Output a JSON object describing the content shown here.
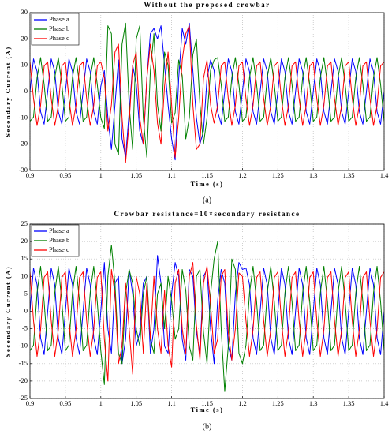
{
  "chart_data": [
    {
      "type": "line",
      "title": "Without the proposed crowbar",
      "xlabel": "Time (s)",
      "ylabel": "Secondary Current (A)",
      "caption": "(a)",
      "x": [
        0.9,
        0.905,
        0.91,
        0.915,
        0.92,
        0.925,
        0.93,
        0.935,
        0.94,
        0.945,
        0.95,
        0.955,
        0.96,
        0.965,
        0.97,
        0.975,
        0.98,
        0.985,
        0.99,
        0.995,
        1.0,
        1.005,
        1.01,
        1.015,
        1.02,
        1.025,
        1.03,
        1.035,
        1.04,
        1.045,
        1.05,
        1.055,
        1.06,
        1.065,
        1.07,
        1.075,
        1.08,
        1.085,
        1.09,
        1.095,
        1.1,
        1.105,
        1.11,
        1.115,
        1.12,
        1.125,
        1.13,
        1.135,
        1.14,
        1.145,
        1.15,
        1.155,
        1.16,
        1.165,
        1.17,
        1.175,
        1.18,
        1.185,
        1.19,
        1.195,
        1.2,
        1.205,
        1.21,
        1.215,
        1.22,
        1.225,
        1.23,
        1.235,
        1.24,
        1.245,
        1.25,
        1.255,
        1.26,
        1.265,
        1.27,
        1.275,
        1.28,
        1.285,
        1.29,
        1.295,
        1.3,
        1.305,
        1.31,
        1.315,
        1.32,
        1.325,
        1.33,
        1.335,
        1.34,
        1.345,
        1.35,
        1.355,
        1.36,
        1.365,
        1.37,
        1.375,
        1.38,
        1.385,
        1.39,
        1.395,
        1.4
      ],
      "series": [
        {
          "name": "Phase a",
          "color": "#0000ff",
          "values": [
            0,
            12.4,
            7.6,
            -7.6,
            -12.4,
            0,
            12.4,
            7.6,
            -7.6,
            -12.4,
            0,
            12.4,
            7.6,
            -7.6,
            -12.4,
            0,
            12.4,
            7.6,
            -7.6,
            -12.4,
            2,
            8,
            -10,
            -22,
            -5,
            12,
            -18,
            -25,
            -8,
            10,
            3,
            -15,
            -20,
            5,
            22,
            24,
            20,
            25,
            10,
            -5,
            -18,
            -26,
            5,
            24,
            18,
            26,
            8,
            -10,
            -20,
            -15,
            5,
            12,
            8,
            -7.6,
            -12.4,
            0,
            12.4,
            7.6,
            -7.6,
            -12.4,
            0,
            12.4,
            7.6,
            -7.6,
            -12.4,
            0,
            12.4,
            7.6,
            -7.6,
            -12.4,
            0,
            12.4,
            7.6,
            -7.6,
            -12.4,
            0,
            12.4,
            7.6,
            -7.6,
            -12.4,
            0,
            12.4,
            7.6,
            -7.6,
            -12.4,
            0,
            12.4,
            7.6,
            -7.6,
            -12.4,
            0,
            12.4,
            7.6,
            -7.6,
            -12.4,
            0,
            12.4,
            7.6,
            -7.6,
            -12.4,
            0
          ]
        },
        {
          "name": "Phase b",
          "color": "#008000",
          "values": [
            -11.3,
            -9.7,
            5.3,
            12.9,
            2.7,
            -11.3,
            -9.7,
            5.3,
            12.9,
            2.7,
            -11.3,
            -9.7,
            5.3,
            12.9,
            2.7,
            -11.3,
            -9.7,
            5.3,
            12.9,
            2.7,
            -10,
            -14,
            25,
            22,
            -20,
            -24,
            18,
            26,
            -5,
            -22,
            20,
            25,
            -10,
            -25,
            8,
            22,
            -5,
            -15,
            15,
            10,
            -12,
            -8,
            12,
            6,
            -18,
            -10,
            14,
            20,
            -5,
            -20,
            -10,
            8,
            12,
            12.9,
            2.7,
            -11.3,
            -9.7,
            5.3,
            12.9,
            2.7,
            -11.3,
            -9.7,
            5.3,
            12.9,
            2.7,
            -11.3,
            -9.7,
            5.3,
            12.9,
            2.7,
            -11.3,
            -9.7,
            5.3,
            12.9,
            2.7,
            -11.3,
            -9.7,
            5.3,
            12.9,
            2.7,
            -11.3,
            -9.7,
            5.3,
            12.9,
            2.7,
            -11.3,
            -9.7,
            5.3,
            12.9,
            2.7,
            -11.3,
            -9.7,
            5.3,
            12.9,
            2.7,
            -11.3,
            -9.7,
            5.3,
            12.9,
            2.7,
            -11.3
          ]
        },
        {
          "name": "Phase c",
          "color": "#ff0000",
          "values": [
            11.3,
            -2.7,
            -12.9,
            -5.3,
            9.7,
            11.3,
            -2.7,
            -12.9,
            -5.3,
            9.7,
            11.3,
            -2.7,
            -12.9,
            -5.3,
            9.7,
            11.3,
            -2.7,
            -12.9,
            -5.3,
            9.7,
            11.3,
            5,
            -15,
            -5,
            15,
            18,
            -10,
            -27,
            -12,
            10,
            15,
            -10,
            -20,
            5,
            18,
            8,
            -12,
            -20,
            2,
            15,
            -5,
            -25,
            -10,
            12,
            22,
            25,
            -5,
            -22,
            -20,
            5,
            12,
            -5,
            -12,
            -5.3,
            9.7,
            11.3,
            -2.7,
            -12.9,
            -5.3,
            9.7,
            11.3,
            -2.7,
            -12.9,
            -5.3,
            9.7,
            11.3,
            -2.7,
            -12.9,
            -5.3,
            9.7,
            11.3,
            -2.7,
            -12.9,
            -5.3,
            9.7,
            11.3,
            -2.7,
            -12.9,
            -5.3,
            9.7,
            11.3,
            -2.7,
            -12.9,
            -5.3,
            9.7,
            11.3,
            -2.7,
            -12.9,
            -5.3,
            9.7,
            11.3,
            -2.7,
            -12.9,
            -5.3,
            9.7,
            11.3,
            -2.7,
            -12.9,
            -5.3,
            9.7,
            11.3
          ]
        }
      ],
      "xlim": [
        0.9,
        1.4
      ],
      "ylim": [
        -30,
        30
      ],
      "xticks": [
        0.9,
        0.95,
        1,
        1.05,
        1.1,
        1.15,
        1.2,
        1.25,
        1.3,
        1.35,
        1.4
      ],
      "yticks": [
        -30,
        -20,
        -10,
        0,
        10,
        20,
        30
      ],
      "grid": true,
      "legend": "upper left"
    },
    {
      "type": "line",
      "title": "Crowbar resistance=10×secondary resistance",
      "xlabel": "Time (s)",
      "ylabel": "Secondary Current (A)",
      "caption": "(b)",
      "x": [
        0.9,
        0.905,
        0.91,
        0.915,
        0.92,
        0.925,
        0.93,
        0.935,
        0.94,
        0.945,
        0.95,
        0.955,
        0.96,
        0.965,
        0.97,
        0.975,
        0.98,
        0.985,
        0.99,
        0.995,
        1.0,
        1.005,
        1.01,
        1.015,
        1.02,
        1.025,
        1.03,
        1.035,
        1.04,
        1.045,
        1.05,
        1.055,
        1.06,
        1.065,
        1.07,
        1.075,
        1.08,
        1.085,
        1.09,
        1.095,
        1.1,
        1.105,
        1.11,
        1.115,
        1.12,
        1.125,
        1.13,
        1.135,
        1.14,
        1.145,
        1.15,
        1.155,
        1.16,
        1.165,
        1.17,
        1.175,
        1.18,
        1.185,
        1.19,
        1.195,
        1.2,
        1.205,
        1.21,
        1.215,
        1.22,
        1.225,
        1.23,
        1.235,
        1.24,
        1.245,
        1.25,
        1.255,
        1.26,
        1.265,
        1.27,
        1.275,
        1.28,
        1.285,
        1.29,
        1.295,
        1.3,
        1.305,
        1.31,
        1.315,
        1.32,
        1.325,
        1.33,
        1.335,
        1.34,
        1.345,
        1.35,
        1.355,
        1.36,
        1.365,
        1.37,
        1.375,
        1.38,
        1.385,
        1.39,
        1.395,
        1.4
      ],
      "series": [
        {
          "name": "Phase a",
          "color": "#0000ff",
          "values": [
            0,
            12.4,
            7.6,
            -7.6,
            -12.4,
            0,
            12.4,
            7.6,
            -7.6,
            -12.4,
            0,
            12.4,
            7.6,
            -7.6,
            -12.4,
            0,
            12.4,
            7.6,
            -7.6,
            -12.4,
            0,
            14,
            -5,
            -12,
            8,
            10,
            -15,
            -8,
            12,
            5,
            -10,
            -6,
            8,
            10,
            -12,
            -5,
            16,
            8,
            -10,
            -12,
            5,
            14,
            10,
            -8,
            -14,
            12,
            10,
            -6,
            -12,
            10,
            12,
            -5,
            -15,
            3,
            12,
            8,
            -10,
            -14,
            5,
            14,
            12,
            12.4,
            7.6,
            -7.6,
            -12.4,
            0,
            12.4,
            7.6,
            -7.6,
            -12.4,
            0,
            12.4,
            7.6,
            -7.6,
            -12.4,
            0,
            12.4,
            7.6,
            -7.6,
            -12.4,
            0,
            12.4,
            7.6,
            -7.6,
            -12.4,
            0,
            12.4,
            7.6,
            -7.6,
            -12.4,
            0,
            12.4,
            7.6,
            -7.6,
            -12.4,
            0,
            12.4,
            7.6,
            -7.6,
            -12.4,
            0
          ]
        },
        {
          "name": "Phase b",
          "color": "#008000",
          "values": [
            -11.3,
            -9.7,
            5.3,
            12.9,
            2.7,
            -11.3,
            -9.7,
            5.3,
            12.9,
            2.7,
            -11.3,
            -9.7,
            5.3,
            12.9,
            2.7,
            -11.3,
            -9.7,
            5.3,
            12.9,
            2.7,
            -11.3,
            -21,
            10,
            19,
            8,
            -12,
            -15,
            5,
            12,
            8,
            -5,
            -10,
            5,
            10,
            -8,
            -12,
            5,
            8,
            -5,
            10,
            3,
            -8,
            -5,
            12,
            6,
            -10,
            -14,
            10,
            12,
            -6,
            -15,
            5,
            15,
            20,
            -5,
            -23,
            -10,
            15,
            12,
            -12,
            -15,
            -9.7,
            5.3,
            12.9,
            2.7,
            -11.3,
            -9.7,
            5.3,
            12.9,
            2.7,
            -11.3,
            -9.7,
            5.3,
            12.9,
            2.7,
            -11.3,
            -9.7,
            5.3,
            12.9,
            2.7,
            -11.3,
            -9.7,
            5.3,
            12.9,
            2.7,
            -11.3,
            -9.7,
            5.3,
            12.9,
            2.7,
            -11.3,
            -9.7,
            5.3,
            12.9,
            2.7,
            -11.3,
            -9.7,
            5.3,
            12.9,
            2.7,
            -11.3
          ]
        },
        {
          "name": "Phase c",
          "color": "#ff0000",
          "values": [
            11.3,
            -2.7,
            -12.9,
            -5.3,
            9.7,
            11.3,
            -2.7,
            -12.9,
            -5.3,
            9.7,
            11.3,
            -2.7,
            -12.9,
            -5.3,
            9.7,
            11.3,
            -2.7,
            -12.9,
            -5.3,
            9.7,
            11.3,
            -8,
            -20,
            12,
            5,
            -15,
            -10,
            8,
            -5,
            -18,
            10,
            5,
            -12,
            8,
            -8,
            10,
            -5,
            -12,
            6,
            -10,
            -16,
            8,
            12,
            -5,
            -12,
            10,
            14,
            -4,
            -14,
            8,
            13,
            2,
            -12,
            -8,
            10,
            12,
            -6,
            -14,
            -5,
            11,
            10,
            -2.7,
            -12.9,
            -5.3,
            9.7,
            11.3,
            -2.7,
            -12.9,
            -5.3,
            9.7,
            11.3,
            -2.7,
            -12.9,
            -5.3,
            9.7,
            11.3,
            -2.7,
            -12.9,
            -5.3,
            9.7,
            11.3,
            -2.7,
            -12.9,
            -5.3,
            9.7,
            11.3,
            -2.7,
            -12.9,
            -5.3,
            9.7,
            11.3,
            -2.7,
            -12.9,
            -5.3,
            9.7,
            11.3,
            -2.7,
            -12.9,
            -5.3,
            9.7,
            11.3
          ]
        }
      ],
      "xlim": [
        0.9,
        1.4
      ],
      "ylim": [
        -25,
        25
      ],
      "xticks": [
        0.9,
        0.95,
        1,
        1.05,
        1.1,
        1.15,
        1.2,
        1.25,
        1.3,
        1.35,
        1.4
      ],
      "yticks": [
        -25,
        -20,
        -15,
        -10,
        -5,
        0,
        5,
        10,
        15,
        20,
        25
      ],
      "grid": true,
      "legend": "upper left"
    }
  ]
}
